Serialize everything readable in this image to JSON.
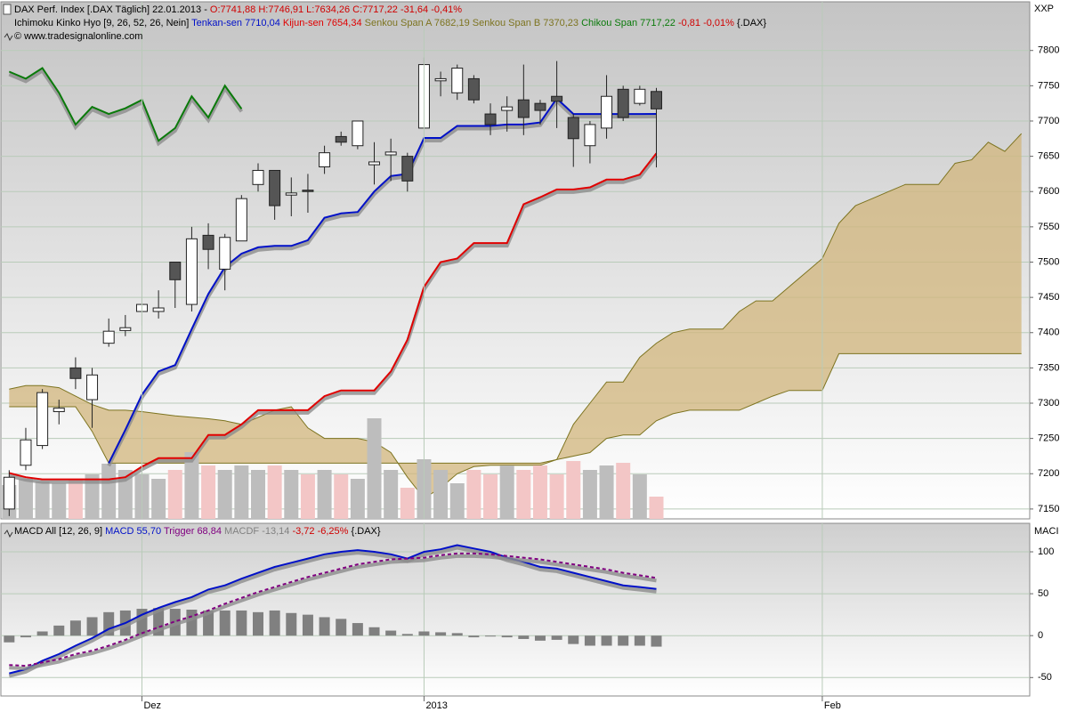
{
  "chart_data": [
    {
      "type": "candlestick",
      "title": "DAX Perf. Index [.DAX  Täglich] 22.01.2013 -",
      "quote": "O:7741,88 H:7746,91 L:7634,26 C:7717,22 -31,64 -0,41%",
      "indicator": "Ichimoku Kinko Hyo [9, 26, 52, 26, Nein]",
      "indicator_change": "-0,81 -0,01%",
      "symbol": "{.DAX}",
      "copyright": "© www.tradesignalonline.com",
      "axis_label": "XXP",
      "xlim": [
        -0.5,
        61.5
      ],
      "ylim": [
        7136,
        7811
      ],
      "yticks": [
        7150,
        7200,
        7250,
        7300,
        7350,
        7400,
        7450,
        7500,
        7550,
        7600,
        7650,
        7700,
        7750,
        7800
      ],
      "grid": true,
      "open": [
        7150,
        7212,
        7240,
        7288,
        7350,
        7305,
        7385,
        7403,
        7430,
        7430,
        7500,
        7440,
        7538,
        7490,
        7530,
        7610,
        7630,
        7595,
        7602,
        7635,
        7678,
        7665,
        7638,
        7652,
        7650,
        7690,
        7757,
        7740,
        7760,
        7710,
        7715,
        7730,
        7725,
        7735,
        7705,
        7665,
        7690,
        7745,
        7725,
        7741.88
      ],
      "high": [
        7205,
        7265,
        7320,
        7305,
        7365,
        7350,
        7420,
        7425,
        7485,
        7460,
        7500,
        7550,
        7555,
        7540,
        7595,
        7640,
        7630,
        7620,
        7625,
        7665,
        7685,
        7700,
        7670,
        7675,
        7655,
        7790,
        7770,
        7780,
        7765,
        7725,
        7735,
        7780,
        7730,
        7785,
        7710,
        7700,
        7765,
        7750,
        7750,
        7746.91
      ],
      "low": [
        7140,
        7205,
        7235,
        7270,
        7320,
        7265,
        7380,
        7395,
        7410,
        7420,
        7435,
        7430,
        7490,
        7460,
        7530,
        7600,
        7560,
        7565,
        7570,
        7625,
        7665,
        7660,
        7610,
        7615,
        7600,
        7690,
        7735,
        7730,
        7725,
        7680,
        7685,
        7680,
        7695,
        7690,
        7635,
        7640,
        7675,
        7700,
        7722,
        7634.26
      ],
      "close": [
        7195,
        7248,
        7315,
        7293,
        7335,
        7340,
        7402,
        7407,
        7440,
        7435,
        7475,
        7533,
        7518,
        7535,
        7590,
        7630,
        7580,
        7598,
        7600,
        7655,
        7670,
        7700,
        7642,
        7656,
        7615,
        7780,
        7760,
        7775,
        7730,
        7695,
        7720,
        7705,
        7715,
        7728,
        7675,
        7695,
        7735,
        7705,
        7745,
        7717.22
      ],
      "up_color": "#ffffff",
      "down_color": "#555555",
      "series": [
        {
          "name": "Tenkan-sen 7710,04",
          "color": "#0010c8",
          "values": [
            null,
            null,
            null,
            null,
            null,
            null,
            7215,
            7262,
            7312,
            7345,
            7354,
            7405,
            7455,
            7493,
            7512,
            7521,
            7523,
            7523,
            7531,
            7563,
            7569,
            7571,
            7600,
            7622,
            7625,
            7676,
            7676,
            7693,
            7693,
            7693,
            7695,
            7695,
            7698,
            7732,
            7710,
            7710,
            7710,
            7710,
            7710,
            7710.04
          ]
        },
        {
          "name": "Kijun-sen 7654,34",
          "color": "#e00000",
          "values": [
            7201,
            7195,
            7192,
            7192,
            7192,
            7192,
            7192,
            7195,
            7210,
            7222,
            7222,
            7222,
            7255,
            7255,
            7270,
            7290,
            7290,
            7290,
            7290,
            7310,
            7318,
            7318,
            7318,
            7345,
            7390,
            7465,
            7500,
            7505,
            7527,
            7527,
            7527,
            7582,
            7592,
            7603,
            7603,
            7606,
            7617,
            7617,
            7624,
            7654.34
          ]
        },
        {
          "name": "Senkou Span A 7682,19",
          "color": "#7d7420",
          "cloud": true,
          "values": [
            7320,
            7325,
            7325,
            7322,
            7310,
            7298,
            7290,
            7290,
            7288,
            7285,
            7282,
            7280,
            7278,
            7275,
            7270,
            7280,
            7290,
            7295,
            7265,
            7250,
            7250,
            7250,
            7245,
            7230,
            7195,
            7165,
            7180,
            7200,
            7210,
            7212,
            7212,
            7212,
            7212,
            7220,
            7270,
            7300,
            7330,
            7330,
            7365,
            7385,
            7400,
            7405,
            7405,
            7405,
            7430,
            7445,
            7445,
            7465,
            7485,
            7505,
            7555,
            7580,
            7590,
            7600,
            7610,
            7610,
            7610,
            7640,
            7645,
            7670,
            7657,
            7682.19
          ]
        },
        {
          "name": "Senkou Span B 7370,23",
          "color": "#7d7420",
          "cloud": true,
          "values": [
            7295,
            7295,
            7295,
            7295,
            7295,
            7260,
            7215,
            7215,
            7215,
            7215,
            7215,
            7215,
            7215,
            7215,
            7215,
            7215,
            7215,
            7215,
            7215,
            7215,
            7215,
            7215,
            7215,
            7215,
            7215,
            7215,
            7215,
            7215,
            7215,
            7215,
            7215,
            7215,
            7215,
            7220,
            7225,
            7230,
            7250,
            7255,
            7255,
            7275,
            7285,
            7290,
            7290,
            7290,
            7290,
            7300,
            7310,
            7318,
            7318,
            7318,
            7370.23,
            7370.23,
            7370.23,
            7370.23,
            7370.23,
            7370.23,
            7370.23,
            7370.23,
            7370.23,
            7370.23,
            7370.23,
            7370.23
          ]
        },
        {
          "name": "Chikou Span 7717,22",
          "color": "#0a7a0a",
          "values": [
            7770,
            7760,
            7775,
            7740,
            7695,
            7720,
            7710,
            7718,
            7730,
            7672,
            7690,
            7735,
            7705,
            7750,
            7717.22
          ]
        }
      ],
      "cloud_color": "#d2b57c",
      "volume": [
        38,
        45,
        42,
        40,
        45,
        50,
        62,
        55,
        50,
        45,
        55,
        75,
        60,
        55,
        60,
        55,
        60,
        55,
        50,
        55,
        50,
        45,
        113,
        55,
        35,
        67,
        55,
        40,
        55,
        50,
        60,
        55,
        60,
        50,
        65,
        55,
        60,
        63,
        50,
        25
      ],
      "volume_up_color": "#bdbdbd",
      "volume_down_color": "#f3c6c6"
    },
    {
      "type": "macd",
      "title": "MACD All [12, 26, 9]",
      "change": "-3,72 -6,25%",
      "symbol": "{.DAX}",
      "axis_label": "MACI",
      "xlim": [
        -0.5,
        61.5
      ],
      "xticks": [
        {
          "value": 8,
          "label": "Dez"
        },
        {
          "value": 25,
          "label": "2013"
        },
        {
          "value": 49,
          "label": "Feb"
        }
      ],
      "ylim": [
        -72,
        134
      ],
      "yticks": [
        -50,
        0,
        50,
        100
      ],
      "grid": true,
      "series": [
        {
          "name": "MACD 55,70",
          "color": "#0010c8",
          "values": [
            -45,
            -40,
            -30,
            -22,
            -12,
            -3,
            8,
            15,
            25,
            33,
            40,
            46,
            55,
            60,
            68,
            75,
            82,
            87,
            92,
            97,
            100,
            102,
            100,
            97,
            92,
            100,
            103,
            108,
            104,
            100,
            93,
            88,
            82,
            80,
            75,
            70,
            65,
            60,
            58,
            55.7
          ]
        },
        {
          "name": "Trigger 68,84",
          "color": "#800080",
          "dashed": true,
          "values": [
            -35,
            -36,
            -32,
            -28,
            -22,
            -18,
            -12,
            -5,
            3,
            10,
            17,
            23,
            30,
            38,
            45,
            52,
            58,
            64,
            70,
            75,
            80,
            85,
            88,
            91,
            92,
            93,
            96,
            98,
            98,
            97,
            95,
            93,
            91,
            88,
            85,
            82,
            79,
            75,
            72,
            68.84
          ]
        },
        {
          "name": "MACDF -13,14",
          "color": "#808080",
          "bars": true,
          "values": [
            -8,
            -2,
            5,
            12,
            18,
            22,
            28,
            30,
            32,
            33,
            32,
            31,
            30,
            30,
            30,
            28,
            30,
            27,
            25,
            22,
            20,
            15,
            10,
            6,
            2,
            5,
            4,
            3,
            -2,
            -1,
            -2,
            -4,
            -6,
            -5,
            -10,
            -12,
            -12,
            -12,
            -12,
            -13.14
          ]
        }
      ]
    }
  ]
}
